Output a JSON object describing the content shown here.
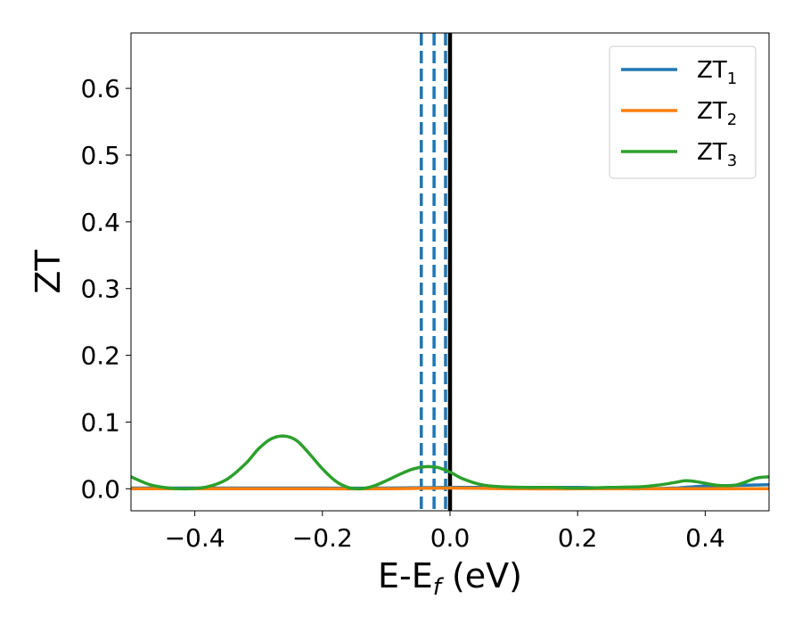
{
  "chart_data": {
    "type": "line",
    "xlabel": "E-E",
    "xlabel_sub": "f",
    "xlabel_unit": " (eV)",
    "ylabel": "ZT",
    "xlim": [
      -0.5,
      0.5
    ],
    "ylim": [
      -0.033,
      0.683
    ],
    "grid": false,
    "legend_position": "top-right",
    "x_ticks": [
      {
        "value": -0.4,
        "label": "−0.4"
      },
      {
        "value": -0.2,
        "label": "−0.2"
      },
      {
        "value": 0.0,
        "label": "0.0"
      },
      {
        "value": 0.2,
        "label": "0.2"
      },
      {
        "value": 0.4,
        "label": "0.4"
      }
    ],
    "y_ticks": [
      {
        "value": 0.0,
        "label": "0.0"
      },
      {
        "value": 0.1,
        "label": "0.1"
      },
      {
        "value": 0.2,
        "label": "0.2"
      },
      {
        "value": 0.3,
        "label": "0.3"
      },
      {
        "value": 0.4,
        "label": "0.4"
      },
      {
        "value": 0.5,
        "label": "0.5"
      },
      {
        "value": 0.6,
        "label": "0.6"
      }
    ],
    "series": [
      {
        "name": "ZT",
        "name_sub": "1",
        "color": "#1f77b4",
        "x": [
          -0.5,
          -0.4,
          -0.3,
          -0.2,
          -0.1,
          0.0,
          0.1,
          0.2,
          0.28,
          0.35,
          0.4,
          0.45,
          0.5
        ],
        "y": [
          0.001,
          0.001,
          0.001,
          0.001,
          0.001,
          0.002,
          0.002,
          0.002,
          0.0,
          0.001,
          0.004,
          0.005,
          0.006
        ]
      },
      {
        "name": "ZT",
        "name_sub": "2",
        "color": "#ff7f0e",
        "x": [
          -0.5,
          -0.4,
          -0.3,
          -0.2,
          -0.1,
          0.0,
          0.1,
          0.2,
          0.3,
          0.4,
          0.5
        ],
        "y": [
          0.0,
          0.0,
          0.0,
          0.0,
          0.0,
          0.001,
          0.0,
          0.0,
          0.0,
          0.0,
          0.0
        ]
      },
      {
        "name": "ZT",
        "name_sub": "3",
        "color": "#2ca02c",
        "x": [
          -0.5,
          -0.47,
          -0.44,
          -0.41,
          -0.38,
          -0.35,
          -0.32,
          -0.3,
          -0.28,
          -0.26,
          -0.24,
          -0.22,
          -0.2,
          -0.18,
          -0.16,
          -0.14,
          -0.12,
          -0.1,
          -0.08,
          -0.06,
          -0.04,
          -0.02,
          0.0,
          0.02,
          0.05,
          0.08,
          0.12,
          0.16,
          0.2,
          0.25,
          0.3,
          0.33,
          0.35,
          0.37,
          0.39,
          0.42,
          0.45,
          0.48,
          0.5
        ],
        "y": [
          0.018,
          0.006,
          0.001,
          0.0,
          0.003,
          0.014,
          0.038,
          0.06,
          0.075,
          0.079,
          0.072,
          0.052,
          0.03,
          0.012,
          0.002,
          0.0,
          0.004,
          0.012,
          0.021,
          0.029,
          0.033,
          0.032,
          0.025,
          0.015,
          0.006,
          0.003,
          0.002,
          0.002,
          0.001,
          0.002,
          0.003,
          0.006,
          0.009,
          0.012,
          0.01,
          0.005,
          0.006,
          0.016,
          0.018
        ]
      }
    ],
    "vlines": [
      {
        "x": -0.045,
        "style": "dashed",
        "color": "#1f77b4"
      },
      {
        "x": -0.025,
        "style": "dashed",
        "color": "#1f77b4"
      },
      {
        "x": -0.007,
        "style": "dashed",
        "color": "#1f77b4"
      },
      {
        "x": 0.0,
        "style": "solid",
        "color": "#000000"
      }
    ]
  }
}
